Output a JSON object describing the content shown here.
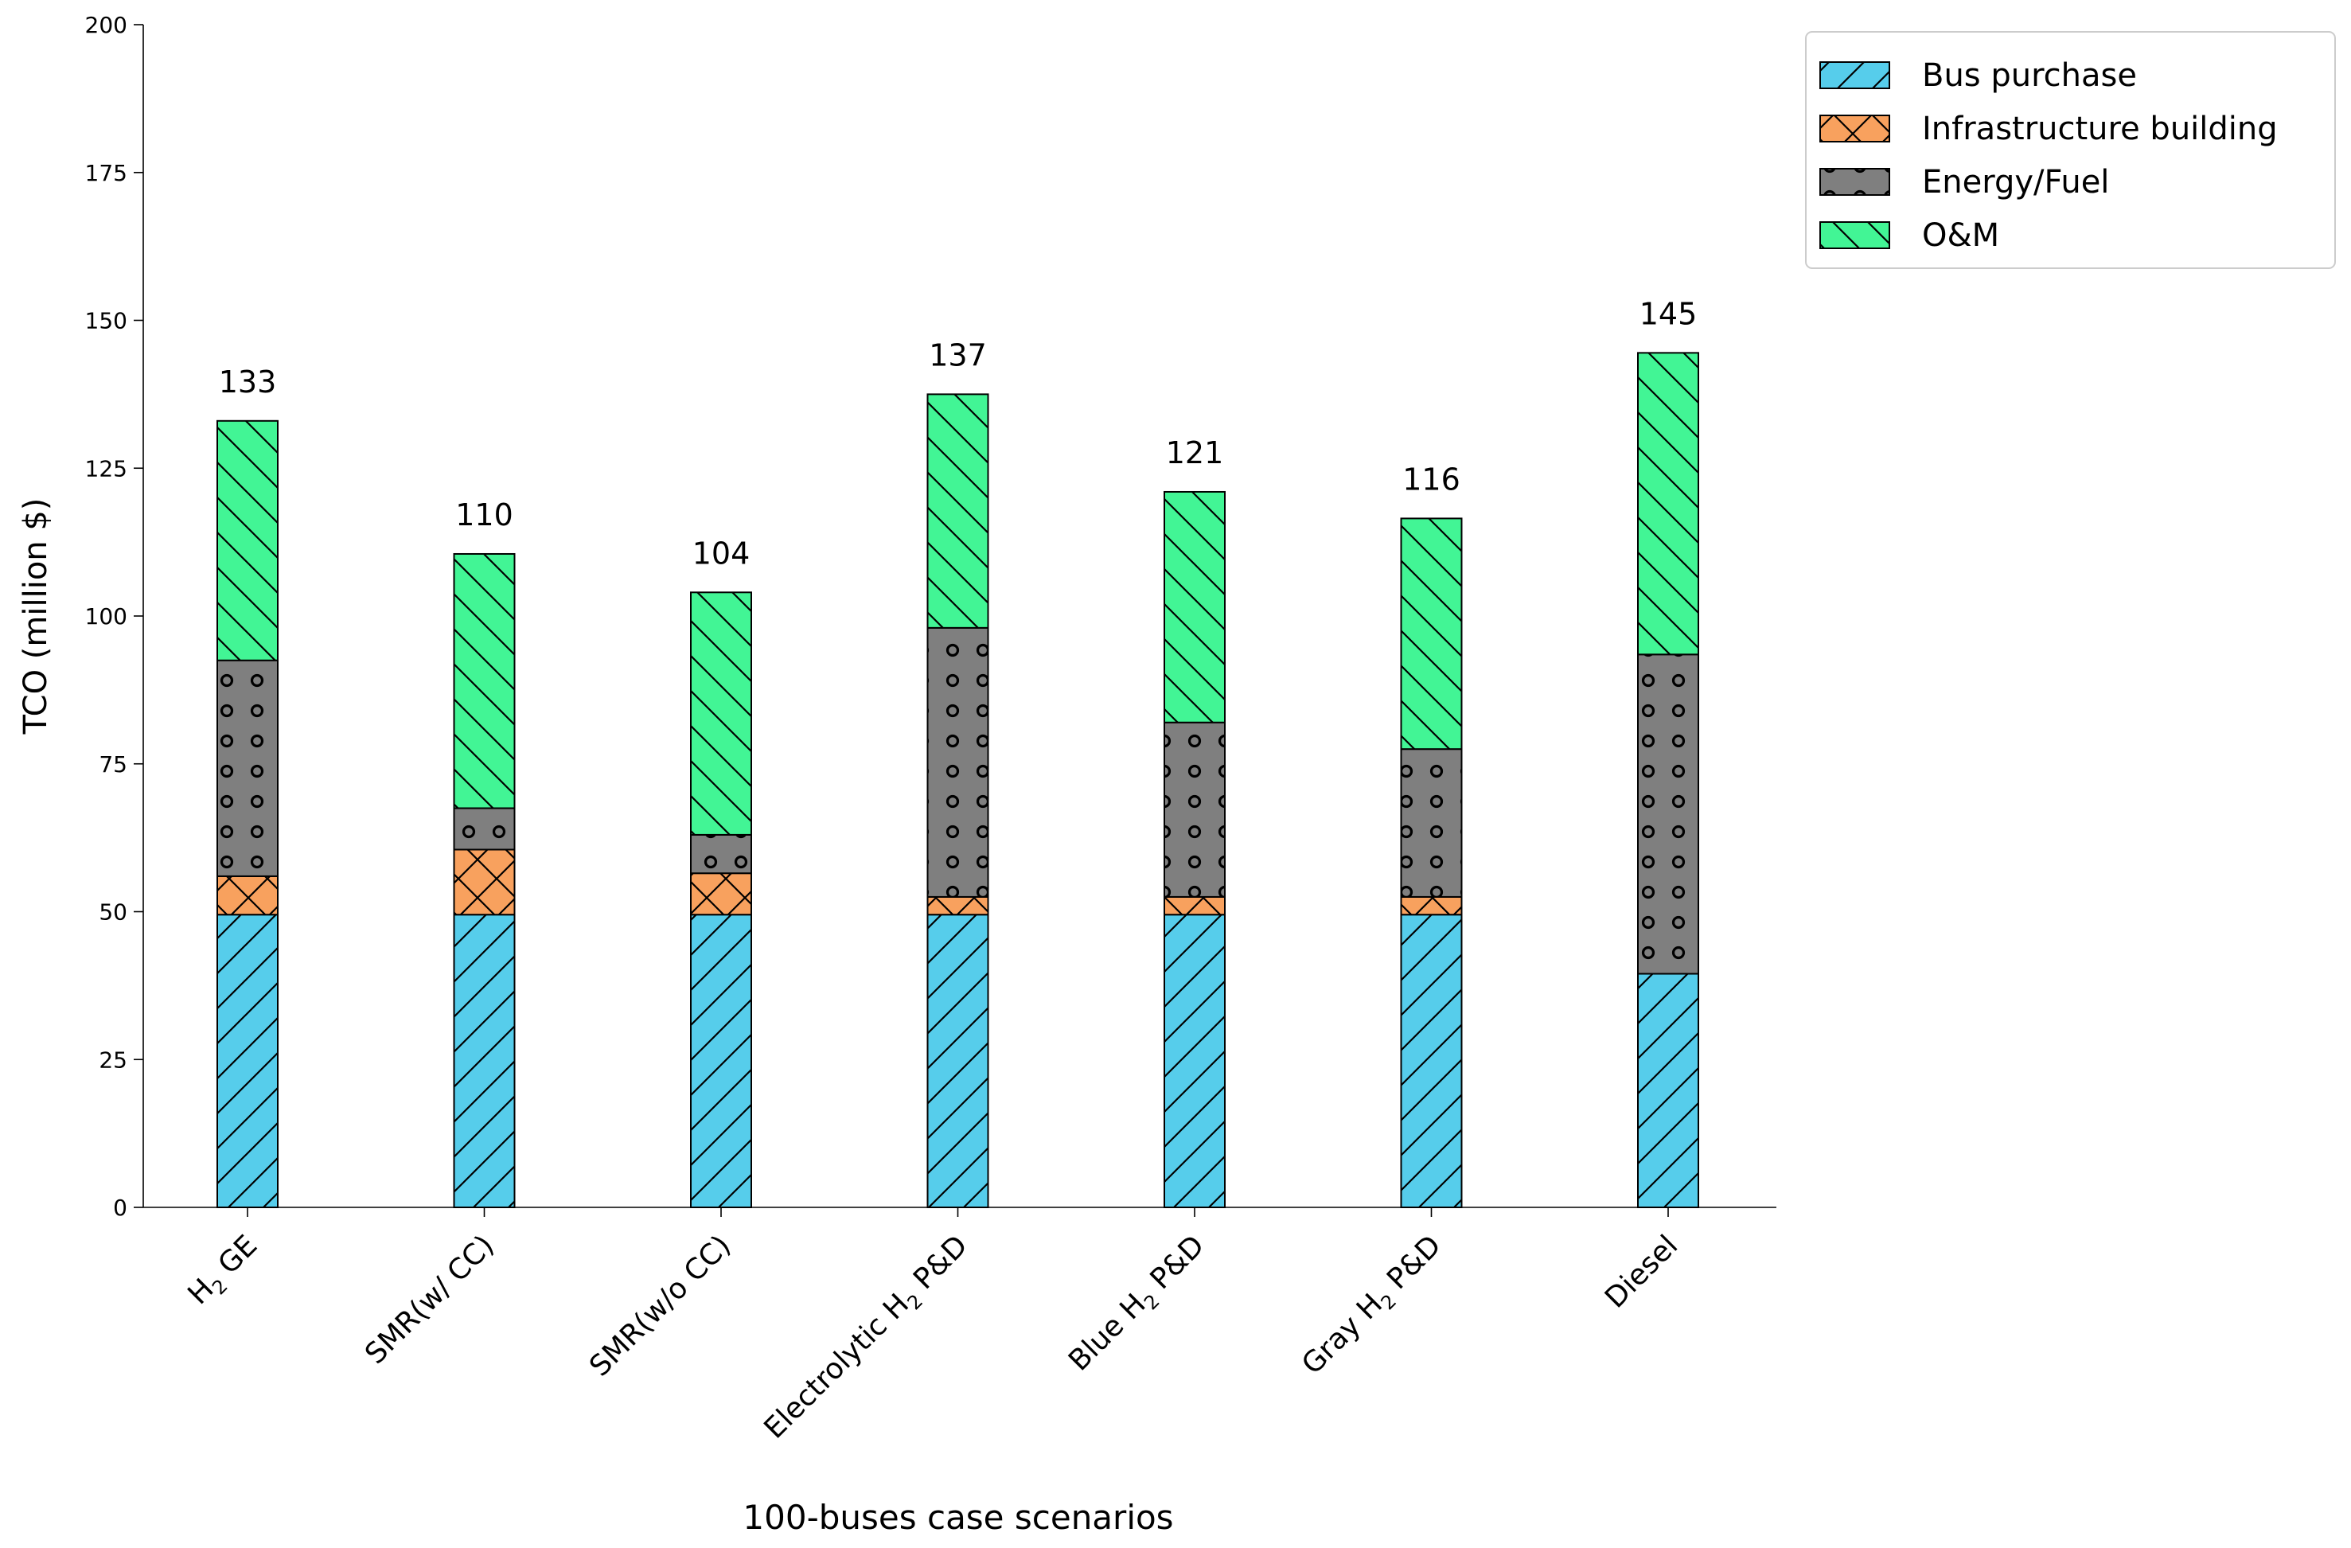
{
  "chart_data": {
    "type": "bar",
    "stacked": true,
    "categories": [
      "H2 GE",
      "SMR(w/ CC)",
      "SMR(w/o CC)",
      "Electrolytic H2 P&D",
      "Blue H2 P&D",
      "Gray H2 P&D",
      "Diesel"
    ],
    "category_labels": [
      {
        "main": "H",
        "sub": "2",
        "rest": " GE"
      },
      {
        "main": "SMR(w/ CC)",
        "sub": "",
        "rest": ""
      },
      {
        "main": "SMR(w/o CC)",
        "sub": "",
        "rest": ""
      },
      {
        "main": "Electrolytic H",
        "sub": "2",
        "rest": " P&D"
      },
      {
        "main": "Blue H",
        "sub": "2",
        "rest": " P&D"
      },
      {
        "main": "Gray H",
        "sub": "2",
        "rest": " P&D"
      },
      {
        "main": "Diesel",
        "sub": "",
        "rest": ""
      }
    ],
    "series": [
      {
        "name": "Bus purchase",
        "color": "#56CDEB",
        "hatch": "/",
        "values": [
          49.5,
          49.5,
          49.5,
          49.5,
          49.5,
          49.5,
          39.5
        ]
      },
      {
        "name": "Infrastructure building",
        "color": "#F8A15E",
        "hatch": "x",
        "values": [
          6.5,
          11,
          7,
          3,
          3,
          3,
          0
        ]
      },
      {
        "name": "Energy/Fuel",
        "color": "#7F7F7F",
        "hatch": "o",
        "values": [
          36.5,
          7,
          6.5,
          45.5,
          29.5,
          25,
          54
        ]
      },
      {
        "name": "O&M",
        "color": "#42F595",
        "hatch": "\\",
        "values": [
          40.5,
          43,
          41,
          39.5,
          39,
          39,
          51
        ]
      }
    ],
    "totals": [
      "133",
      "110",
      "104",
      "137",
      "121",
      "116",
      "145"
    ],
    "title": "",
    "xlabel": "100-buses case scenarios",
    "ylabel": "TCO (million $)",
    "ylim": [
      0,
      200
    ],
    "yticks": [
      "0",
      "25",
      "50",
      "75",
      "100",
      "125",
      "150",
      "175",
      "200"
    ],
    "grid": false,
    "legend_position": "top-right outside"
  }
}
